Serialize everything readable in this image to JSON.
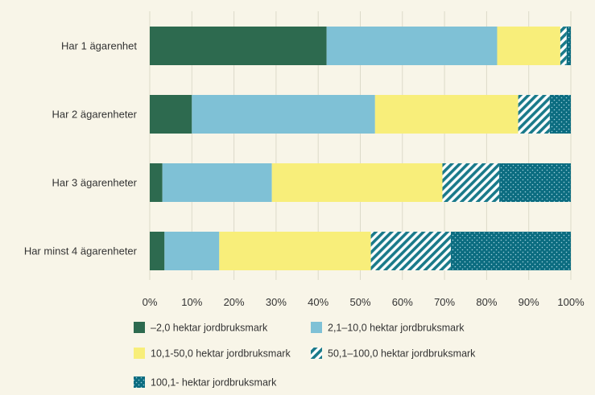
{
  "chart_data": {
    "type": "bar",
    "orientation": "horizontal",
    "stacked": true,
    "normalized": true,
    "categories": [
      "Har 1 ägarenhet",
      "Har 2 ägarenheter",
      "Har 3 ägarenheter",
      "Har minst 4 ägarenheter"
    ],
    "series": [
      {
        "name": "–2,0 hektar jordbruksmark",
        "values": [
          42,
          10,
          3,
          3.5
        ],
        "color": "#2d6a4f",
        "pattern": "solid"
      },
      {
        "name": "2,1–10,0 hektar jordbruksmark",
        "values": [
          40.5,
          43.5,
          26,
          13
        ],
        "color": "#7fc1d6",
        "pattern": "solid"
      },
      {
        "name": "10,1-50,0  hektar jordbruksmark",
        "values": [
          15,
          34,
          40.5,
          36
        ],
        "color": "#f8ee7a",
        "pattern": "solid"
      },
      {
        "name": "50,1–100,0 hektar jordbruksmark",
        "values": [
          1.5,
          7.5,
          13.5,
          19
        ],
        "color": "#1a7a8a",
        "pattern": "diagonal-stripes"
      },
      {
        "name": "100,1- hektar jordbruksmark",
        "values": [
          1,
          5,
          17,
          28.5
        ],
        "color": "#0b6c80",
        "pattern": "dots"
      }
    ],
    "xlim": [
      0,
      100
    ],
    "xticks": [
      "0%",
      "10%",
      "20%",
      "30%",
      "40%",
      "50%",
      "60%",
      "70%",
      "80%",
      "90%",
      "100%"
    ],
    "grid": true,
    "legend_position": "bottom",
    "title": "",
    "xlabel": "",
    "ylabel": ""
  }
}
